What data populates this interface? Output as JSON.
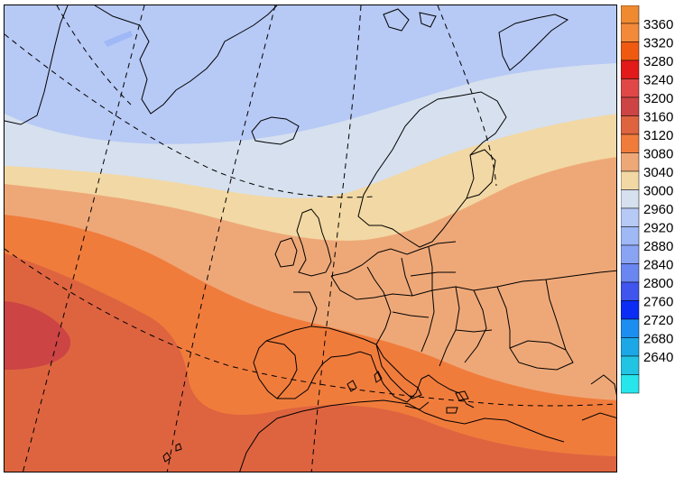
{
  "legend": {
    "levels": [
      {
        "value": "3360",
        "color": "#f28a3a"
      },
      {
        "value": "3320",
        "color": "#f05a10"
      },
      {
        "value": "3280",
        "color": "#e21a1a"
      },
      {
        "value": "3240",
        "color": "#e04848"
      },
      {
        "value": "3200",
        "color": "#cc4444"
      },
      {
        "value": "3160",
        "color": "#de6440"
      },
      {
        "value": "3120",
        "color": "#f07c3c"
      },
      {
        "value": "3080",
        "color": "#eea878"
      },
      {
        "value": "3040",
        "color": "#f2d8a4"
      },
      {
        "value": "3000",
        "color": "#d6e0ee"
      },
      {
        "value": "2960",
        "color": "#b7c9f5"
      },
      {
        "value": "2920",
        "color": "#9fb8f6"
      },
      {
        "value": "2880",
        "color": "#8aa4f4"
      },
      {
        "value": "2840",
        "color": "#6a86f0"
      },
      {
        "value": "2800",
        "color": "#3f55ee"
      },
      {
        "value": "2760",
        "color": "#0a2cf4"
      },
      {
        "value": "2720",
        "color": "#1c8ef0"
      },
      {
        "value": "2680",
        "color": "#1ca8e6"
      },
      {
        "value": "2640",
        "color": "#22c4e4"
      },
      {
        "value": "",
        "color": "#26e6ec"
      }
    ],
    "top_color": "#f08a30"
  }
}
